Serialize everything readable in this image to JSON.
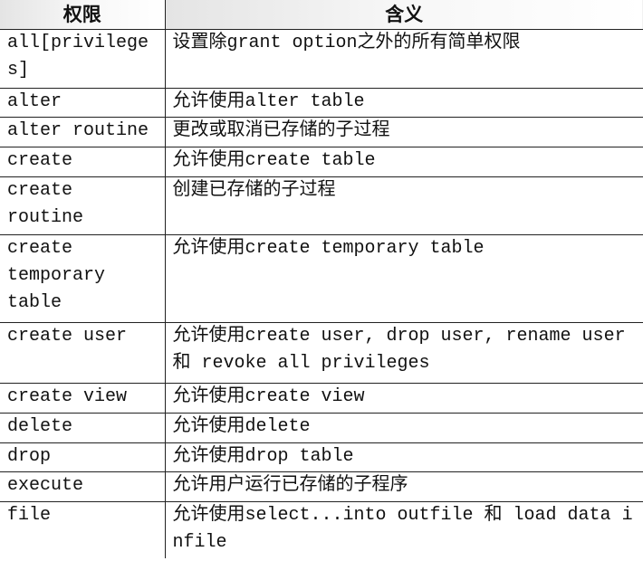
{
  "table": {
    "header": [
      "权限",
      "含义"
    ],
    "rows": [
      [
        "all[privileges]",
        "设置除grant option之外的所有简单权限"
      ],
      [
        "alter",
        "允许使用alter table"
      ],
      [
        "alter routine",
        "更改或取消已存储的子过程"
      ],
      [
        "create",
        "允许使用create table"
      ],
      [
        "create routine",
        "创建已存储的子过程"
      ],
      [
        "create temporary table",
        "允许使用create temporary table"
      ],
      [
        "create user",
        "允许使用create user, drop user, rename user 和 revoke all privileges"
      ],
      [
        "create view",
        "允许使用create view"
      ],
      [
        "delete",
        "允许使用delete"
      ],
      [
        "drop",
        "允许使用drop table"
      ],
      [
        "execute",
        "允许用户运行已存储的子程序"
      ],
      [
        "file",
        "允许使用select...into outfile 和 load data infile"
      ]
    ]
  }
}
